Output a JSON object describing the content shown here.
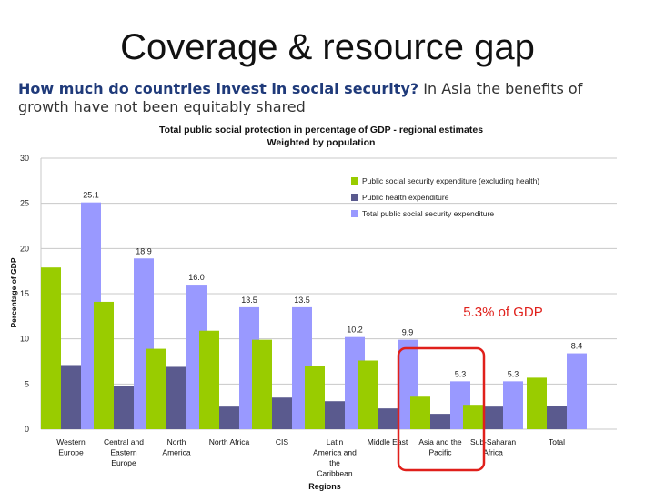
{
  "slide": {
    "title": "Coverage & resource gap",
    "subtitle_question": "How much do countries invest in social security?",
    "subtitle_rest": " In Asia the benefits of growth have not been equitably shared"
  },
  "callout": {
    "text": "5.3% of GDP",
    "color": "#e0201b"
  },
  "colors": {
    "green": "#99cc00",
    "dark": "#5a5a8e",
    "light": "#9999ff",
    "grid": "#c8c8c8"
  },
  "chart_data": {
    "type": "bar",
    "title": "Total public social protection in percentage of GDP - regional estimates",
    "subtitle": "Weighted by population",
    "xlabel": "Regions",
    "ylabel": "Percentage of GDP",
    "ylim": [
      0,
      30
    ],
    "yticks": [
      0,
      5,
      10,
      15,
      20,
      25,
      30
    ],
    "grid": true,
    "legend_position": "top-right",
    "categories": [
      [
        "Western",
        "Europe"
      ],
      [
        "Central and",
        "Eastern",
        "Europe"
      ],
      [
        "North",
        "America"
      ],
      [
        "North Africa"
      ],
      [
        "CIS"
      ],
      [
        "Latin",
        "America and",
        "the",
        "Caribbean"
      ],
      [
        "Middle East"
      ],
      [
        "Asia and the",
        "Pacific"
      ],
      [
        "Sub-Saharan",
        "Africa"
      ],
      [
        "Total"
      ]
    ],
    "series": [
      {
        "name": "Public social security expenditure (excluding health)",
        "color": "#99cc00",
        "values": [
          17.9,
          14.1,
          8.9,
          10.9,
          9.9,
          7.0,
          7.6,
          3.6,
          2.7,
          5.7
        ]
      },
      {
        "name": "Public health expenditure",
        "color": "#5a5a8e",
        "values": [
          7.1,
          4.8,
          6.9,
          2.5,
          3.5,
          3.1,
          2.3,
          1.7,
          2.5,
          2.6
        ]
      },
      {
        "name": "Total public social security expenditure",
        "color": "#9999ff",
        "values": [
          25.1,
          18.9,
          16.0,
          13.5,
          13.5,
          10.2,
          9.9,
          5.3,
          5.3,
          8.4
        ]
      }
    ],
    "data_labels": [
      "25.1",
      "18.9",
      "16.0",
      "13.5",
      "13.5",
      "10.2",
      "9.9",
      "5.3",
      "5.3",
      "8.4"
    ],
    "highlight_category_index": 7
  }
}
